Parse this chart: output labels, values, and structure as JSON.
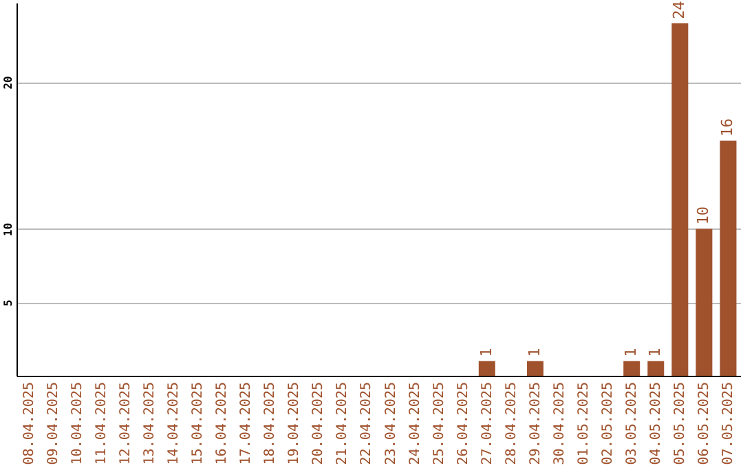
{
  "chart_data": {
    "type": "bar",
    "categories": [
      "08.04.2025",
      "09.04.2025",
      "10.04.2025",
      "11.04.2025",
      "12.04.2025",
      "13.04.2025",
      "14.04.2025",
      "15.04.2025",
      "16.04.2025",
      "17.04.2025",
      "18.04.2025",
      "19.04.2025",
      "20.04.2025",
      "21.04.2025",
      "22.04.2025",
      "23.04.2025",
      "24.04.2025",
      "25.04.2025",
      "26.04.2025",
      "27.04.2025",
      "28.04.2025",
      "29.04.2025",
      "30.04.2025",
      "01.05.2025",
      "02.05.2025",
      "03.05.2025",
      "04.05.2025",
      "05.05.2025",
      "06.05.2025",
      "07.05.2025"
    ],
    "values": [
      0,
      0,
      0,
      0,
      0,
      0,
      0,
      0,
      0,
      0,
      0,
      0,
      0,
      0,
      0,
      0,
      0,
      0,
      0,
      1,
      0,
      1,
      0,
      0,
      0,
      1,
      1,
      24,
      10,
      16
    ],
    "value_labels": [
      null,
      null,
      null,
      null,
      null,
      null,
      null,
      null,
      null,
      null,
      null,
      null,
      null,
      null,
      null,
      null,
      null,
      null,
      null,
      "1",
      null,
      "1",
      null,
      null,
      null,
      "1",
      "1",
      "24",
      "10",
      "16"
    ],
    "color": "#a0522d",
    "ylim": [
      0,
      25.4
    ],
    "yticks": [
      5,
      10,
      20
    ],
    "grid": "y"
  }
}
